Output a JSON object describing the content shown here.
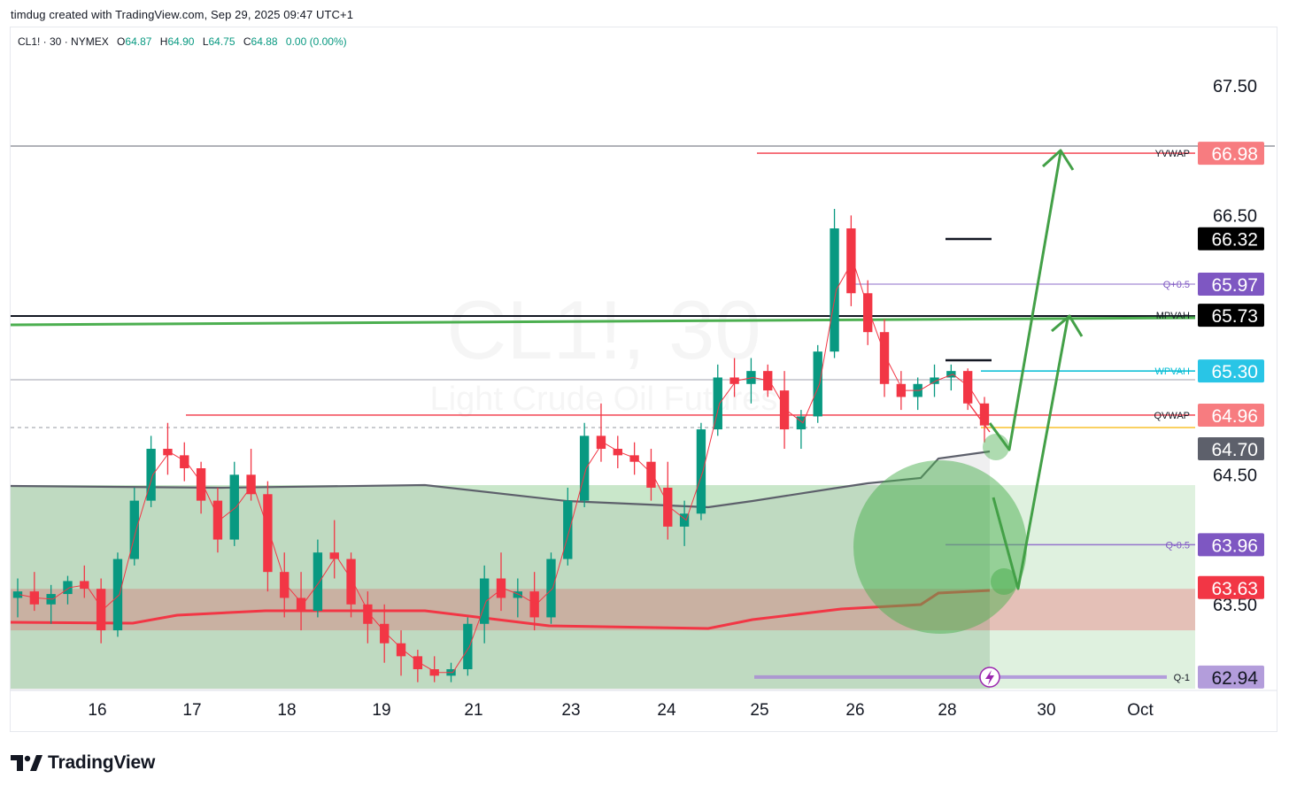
{
  "header": {
    "caption": "timdug created with TradingView.com, Sep 29, 2025 09:47 UTC+1"
  },
  "legend": {
    "symbol": "CL1! · 30 · NYMEX",
    "open_label": "O",
    "open": "64.87",
    "high_label": "H",
    "high": "64.90",
    "low_label": "L",
    "low": "64.75",
    "close_label": "C",
    "close": "64.88",
    "change": "0.00 (0.00%)"
  },
  "watermark": {
    "symbol": "CL1!, 30",
    "name": "Light Crude Oil Futures"
  },
  "footer": {
    "brand": "TradingView"
  },
  "colors": {
    "up": "#089981",
    "down": "#f23645",
    "vwap_red": "#f23645",
    "level_green": "#4caf50",
    "purple": "#7e57c2",
    "cyan": "#00bcd4",
    "zone_green": "#4caf50",
    "zone_red": "#f23645"
  },
  "chart_data": {
    "type": "candlestick",
    "x_ticks": [
      "16",
      "17",
      "18",
      "19",
      "21",
      "23",
      "24",
      "25",
      "26",
      "28",
      "30",
      "Oct"
    ],
    "y_ticks": [
      "67.50",
      "66.50",
      "64.50",
      "63.50"
    ],
    "ylim": [
      62.85,
      67.95
    ],
    "candles": [
      {
        "o": 63.55,
        "h": 63.7,
        "l": 63.4,
        "c": 63.6
      },
      {
        "o": 63.6,
        "h": 63.75,
        "l": 63.45,
        "c": 63.5
      },
      {
        "o": 63.5,
        "h": 63.65,
        "l": 63.35,
        "c": 63.58
      },
      {
        "o": 63.58,
        "h": 63.72,
        "l": 63.5,
        "c": 63.68
      },
      {
        "o": 63.68,
        "h": 63.8,
        "l": 63.55,
        "c": 63.62
      },
      {
        "o": 63.62,
        "h": 63.7,
        "l": 63.2,
        "c": 63.3
      },
      {
        "o": 63.3,
        "h": 63.9,
        "l": 63.25,
        "c": 63.85
      },
      {
        "o": 63.85,
        "h": 64.4,
        "l": 63.8,
        "c": 64.3
      },
      {
        "o": 64.3,
        "h": 64.8,
        "l": 64.25,
        "c": 64.7
      },
      {
        "o": 64.7,
        "h": 64.9,
        "l": 64.5,
        "c": 64.65
      },
      {
        "o": 64.65,
        "h": 64.75,
        "l": 64.45,
        "c": 64.55
      },
      {
        "o": 64.55,
        "h": 64.6,
        "l": 64.2,
        "c": 64.3
      },
      {
        "o": 64.3,
        "h": 64.4,
        "l": 63.9,
        "c": 64.0
      },
      {
        "o": 64.0,
        "h": 64.6,
        "l": 63.95,
        "c": 64.5
      },
      {
        "o": 64.5,
        "h": 64.7,
        "l": 64.3,
        "c": 64.35
      },
      {
        "o": 64.35,
        "h": 64.45,
        "l": 63.6,
        "c": 63.75
      },
      {
        "o": 63.75,
        "h": 63.9,
        "l": 63.4,
        "c": 63.55
      },
      {
        "o": 63.55,
        "h": 63.75,
        "l": 63.3,
        "c": 63.45
      },
      {
        "o": 63.45,
        "h": 64.0,
        "l": 63.4,
        "c": 63.9
      },
      {
        "o": 63.9,
        "h": 64.15,
        "l": 63.7,
        "c": 63.85
      },
      {
        "o": 63.85,
        "h": 63.9,
        "l": 63.4,
        "c": 63.5
      },
      {
        "o": 63.5,
        "h": 63.6,
        "l": 63.2,
        "c": 63.35
      },
      {
        "o": 63.35,
        "h": 63.5,
        "l": 63.05,
        "c": 63.2
      },
      {
        "o": 63.2,
        "h": 63.3,
        "l": 62.95,
        "c": 63.1
      },
      {
        "o": 63.1,
        "h": 63.15,
        "l": 62.9,
        "c": 63.0
      },
      {
        "o": 63.0,
        "h": 63.1,
        "l": 62.9,
        "c": 62.95
      },
      {
        "o": 62.95,
        "h": 63.05,
        "l": 62.9,
        "c": 63.0
      },
      {
        "o": 63.0,
        "h": 63.4,
        "l": 62.95,
        "c": 63.35
      },
      {
        "o": 63.35,
        "h": 63.8,
        "l": 63.2,
        "c": 63.7
      },
      {
        "o": 63.7,
        "h": 63.9,
        "l": 63.45,
        "c": 63.55
      },
      {
        "o": 63.55,
        "h": 63.7,
        "l": 63.4,
        "c": 63.6
      },
      {
        "o": 63.6,
        "h": 63.75,
        "l": 63.3,
        "c": 63.4
      },
      {
        "o": 63.4,
        "h": 63.9,
        "l": 63.35,
        "c": 63.85
      },
      {
        "o": 63.85,
        "h": 64.4,
        "l": 63.8,
        "c": 64.3
      },
      {
        "o": 64.3,
        "h": 64.9,
        "l": 64.25,
        "c": 64.8
      },
      {
        "o": 64.8,
        "h": 65.05,
        "l": 64.6,
        "c": 64.7
      },
      {
        "o": 64.7,
        "h": 64.8,
        "l": 64.55,
        "c": 64.65
      },
      {
        "o": 64.65,
        "h": 64.75,
        "l": 64.5,
        "c": 64.6
      },
      {
        "o": 64.6,
        "h": 64.7,
        "l": 64.3,
        "c": 64.4
      },
      {
        "o": 64.4,
        "h": 64.6,
        "l": 64.0,
        "c": 64.1
      },
      {
        "o": 64.1,
        "h": 64.3,
        "l": 63.95,
        "c": 64.2
      },
      {
        "o": 64.2,
        "h": 64.9,
        "l": 64.15,
        "c": 64.85
      },
      {
        "o": 64.85,
        "h": 65.35,
        "l": 64.8,
        "c": 65.25
      },
      {
        "o": 65.25,
        "h": 65.4,
        "l": 65.1,
        "c": 65.2
      },
      {
        "o": 65.2,
        "h": 65.4,
        "l": 65.05,
        "c": 65.3
      },
      {
        "o": 65.3,
        "h": 65.35,
        "l": 65.1,
        "c": 65.15
      },
      {
        "o": 65.15,
        "h": 65.3,
        "l": 64.7,
        "c": 64.85
      },
      {
        "o": 64.85,
        "h": 65.0,
        "l": 64.7,
        "c": 64.95
      },
      {
        "o": 64.95,
        "h": 65.5,
        "l": 64.9,
        "c": 65.45
      },
      {
        "o": 65.45,
        "h": 66.55,
        "l": 65.4,
        "c": 66.4
      },
      {
        "o": 66.4,
        "h": 66.5,
        "l": 65.8,
        "c": 65.9
      },
      {
        "o": 65.9,
        "h": 66.0,
        "l": 65.5,
        "c": 65.6
      },
      {
        "o": 65.6,
        "h": 65.7,
        "l": 65.1,
        "c": 65.2
      },
      {
        "o": 65.2,
        "h": 65.3,
        "l": 65.0,
        "c": 65.1
      },
      {
        "o": 65.1,
        "h": 65.25,
        "l": 65.0,
        "c": 65.2
      },
      {
        "o": 65.2,
        "h": 65.35,
        "l": 65.1,
        "c": 65.25
      },
      {
        "o": 65.25,
        "h": 65.35,
        "l": 65.15,
        "c": 65.3
      },
      {
        "o": 65.3,
        "h": 65.32,
        "l": 65.0,
        "c": 65.05
      },
      {
        "o": 65.05,
        "h": 65.1,
        "l": 64.75,
        "c": 64.88
      }
    ],
    "levels": [
      {
        "name": "YVWAP",
        "value": 66.98,
        "label": "66.98",
        "color": "#f23645"
      },
      {
        "name": "",
        "value": 66.32,
        "label": "66.32",
        "color": "#131722"
      },
      {
        "name": "Q+0.5",
        "value": 65.97,
        "label": "65.97",
        "color": "#7e57c2"
      },
      {
        "name": "MPVAH",
        "value": 65.73,
        "label": "65.73",
        "color": "#131722"
      },
      {
        "name": "WPVAH",
        "value": 65.3,
        "label": "65.30",
        "color": "#00bcd4"
      },
      {
        "name": "QVWAP",
        "value": 64.96,
        "label": "64.96",
        "color": "#f23645"
      },
      {
        "name": "",
        "value": 64.7,
        "label": "64.70",
        "color": "#5d606b"
      },
      {
        "name": "Q-0.5",
        "value": 63.96,
        "label": "63.96",
        "color": "#7e57c2"
      },
      {
        "name": "",
        "value": 63.63,
        "label": "63.63",
        "color": "#f23645"
      },
      {
        "name": "Q-1",
        "value": 62.94,
        "label": "62.94",
        "color": "#7e57c2"
      }
    ],
    "zones": [
      {
        "name": "green-value-area",
        "from": 62.85,
        "to": 64.42
      },
      {
        "name": "red-vwap-band",
        "from": 63.3,
        "to": 63.62
      }
    ],
    "projection_path": [
      [
        0.0,
        64.8
      ],
      [
        0.6,
        64.72
      ],
      [
        5.0,
        66.98
      ]
    ],
    "alt_projection_path": [
      [
        0.2,
        64.25
      ],
      [
        1.6,
        63.62
      ],
      [
        4.0,
        65.73
      ]
    ],
    "grid": false,
    "legend_position": "top-left"
  }
}
